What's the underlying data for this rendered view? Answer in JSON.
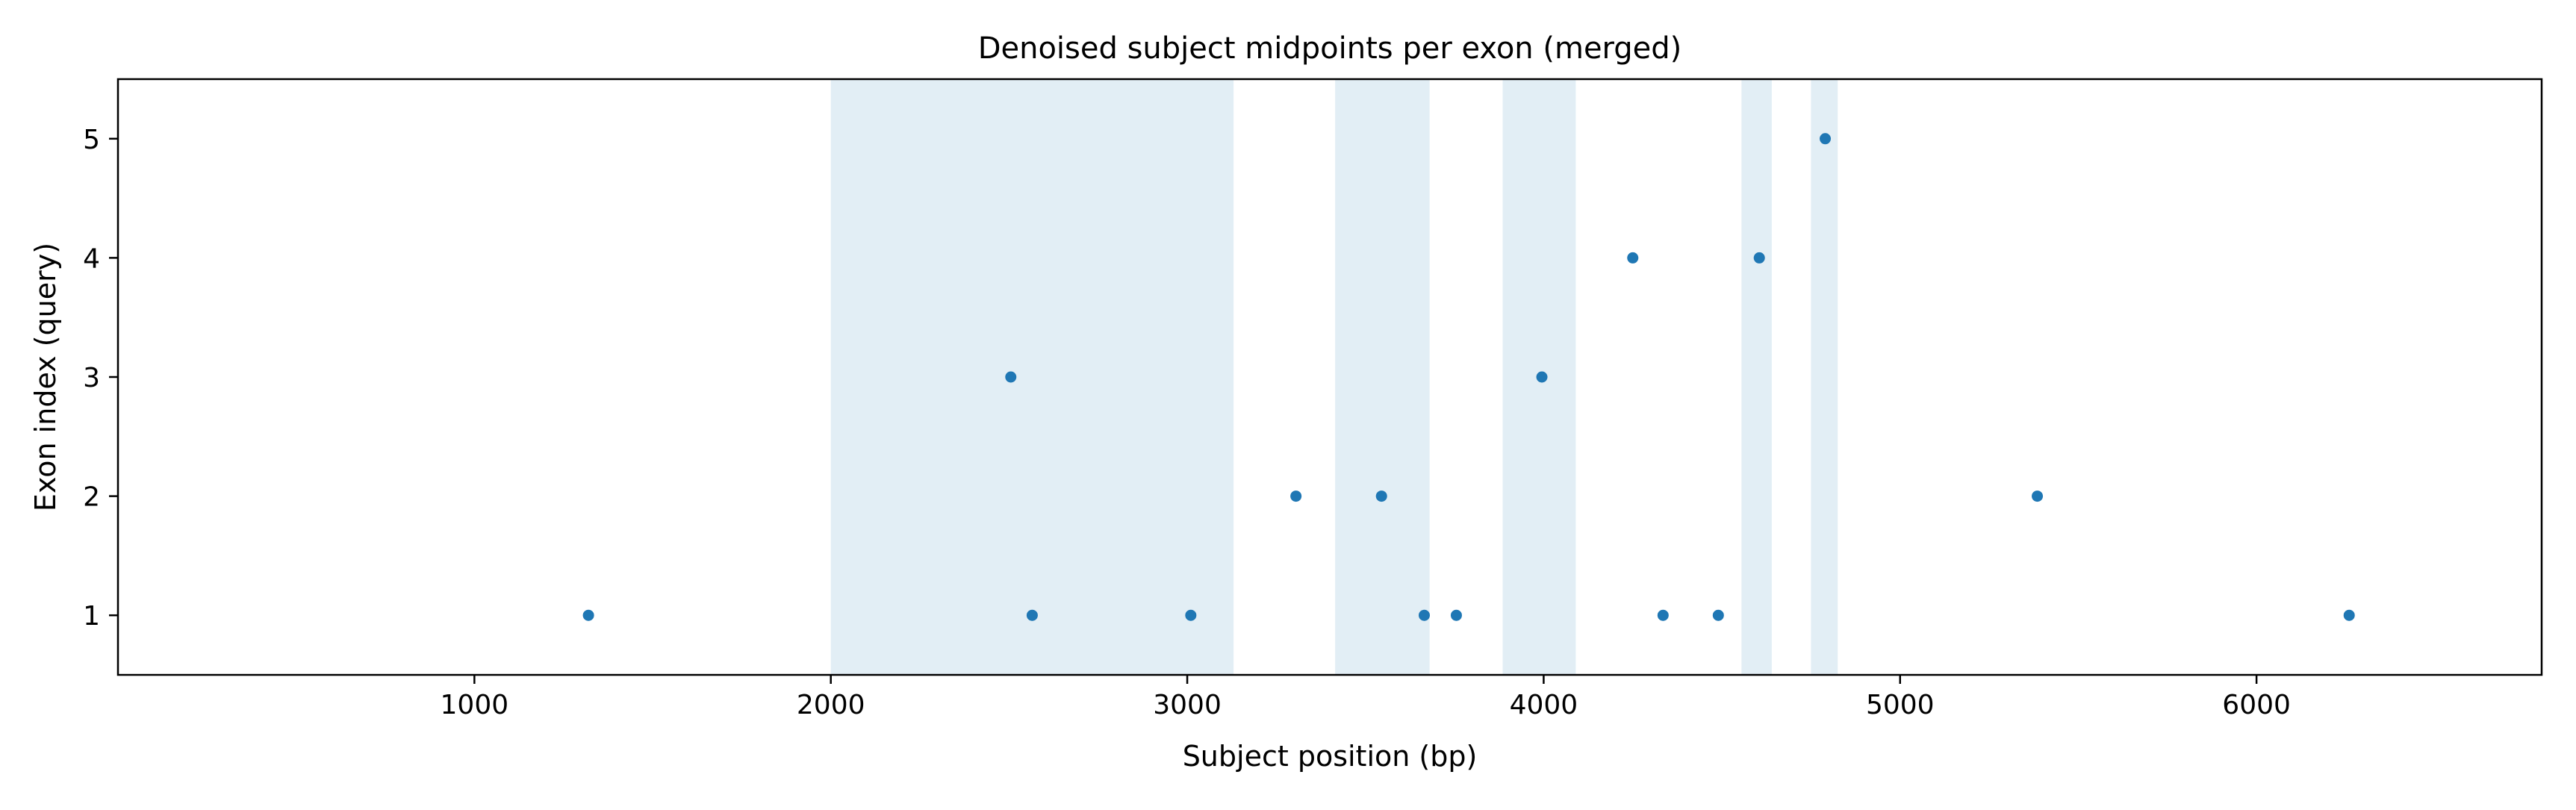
{
  "chart_data": {
    "type": "scatter",
    "title": "Denoised subject midpoints per exon (merged)",
    "xlabel": "Subject position (bp)",
    "ylabel": "Exon index (query)",
    "xlim": [
      0,
      6800
    ],
    "ylim": [
      0.5,
      5.5
    ],
    "xticks": [
      1000,
      2000,
      3000,
      4000,
      5000,
      6000
    ],
    "yticks": [
      1,
      2,
      3,
      4,
      5
    ],
    "grid": false,
    "point_color": "#1f77b4",
    "band_color": "#cfe3ef",
    "shaded_regions": [
      {
        "start": 2000,
        "end": 3130
      },
      {
        "start": 3415,
        "end": 3680
      },
      {
        "start": 3885,
        "end": 4090
      },
      {
        "start": 4555,
        "end": 4640
      },
      {
        "start": 4750,
        "end": 4825
      }
    ],
    "points": [
      {
        "x": 1320,
        "y": 1
      },
      {
        "x": 2505,
        "y": 3
      },
      {
        "x": 2565,
        "y": 1
      },
      {
        "x": 3010,
        "y": 1
      },
      {
        "x": 3305,
        "y": 2
      },
      {
        "x": 3545,
        "y": 2
      },
      {
        "x": 3665,
        "y": 1
      },
      {
        "x": 3755,
        "y": 1
      },
      {
        "x": 3995,
        "y": 3
      },
      {
        "x": 4250,
        "y": 4
      },
      {
        "x": 4335,
        "y": 1
      },
      {
        "x": 4490,
        "y": 1
      },
      {
        "x": 4605,
        "y": 4
      },
      {
        "x": 4790,
        "y": 5
      },
      {
        "x": 5385,
        "y": 2
      },
      {
        "x": 6260,
        "y": 1
      }
    ]
  }
}
